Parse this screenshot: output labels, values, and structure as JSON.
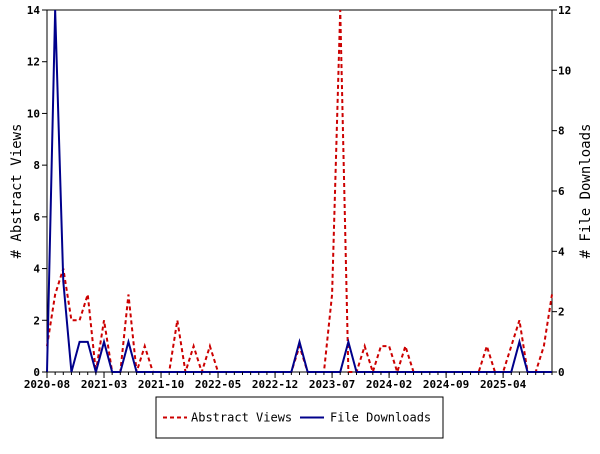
{
  "chart_data": {
    "type": "line",
    "title": "",
    "xlabel": "",
    "ylabel": "# Abstract Views",
    "y2label": "# File Downloads",
    "ylim": [
      0,
      14
    ],
    "y2lim": [
      0,
      12
    ],
    "yticks": [
      0,
      2,
      4,
      6,
      8,
      10,
      12,
      14
    ],
    "y2ticks": [
      0,
      2,
      4,
      6,
      8,
      10,
      12
    ],
    "grid": false,
    "legend": "bottom",
    "x_tick_labels": [
      "2020-08",
      "2021-03",
      "2021-10",
      "2022-05",
      "2022-12",
      "2023-07",
      "2024-02",
      "2024-09",
      "2025-04"
    ],
    "x": [
      "2020-08",
      "2020-09",
      "2020-10",
      "2020-11",
      "2020-12",
      "2021-01",
      "2021-02",
      "2021-03",
      "2021-04",
      "2021-05",
      "2021-06",
      "2021-07",
      "2021-08",
      "2021-09",
      "2021-10",
      "2021-11",
      "2021-12",
      "2022-01",
      "2022-02",
      "2022-03",
      "2022-04",
      "2022-05",
      "2022-06",
      "2022-07",
      "2022-08",
      "2022-09",
      "2022-10",
      "2022-11",
      "2022-12",
      "2023-01",
      "2023-02",
      "2023-03",
      "2023-04",
      "2023-05",
      "2023-06",
      "2023-07",
      "2023-08",
      "2023-09",
      "2023-10",
      "2023-11",
      "2023-12",
      "2024-01",
      "2024-02",
      "2024-03",
      "2024-04",
      "2024-05",
      "2024-06",
      "2024-07",
      "2024-08",
      "2024-09",
      "2024-10",
      "2024-11",
      "2024-12",
      "2025-01",
      "2025-02",
      "2025-03",
      "2025-04",
      "2025-05",
      "2025-06",
      "2025-07",
      "2025-08",
      "2025-09",
      "2025-10"
    ],
    "series": [
      {
        "name": "Abstract Views",
        "axis": "left",
        "color": "#cc0000",
        "style": "dashed",
        "values": [
          1,
          3,
          4,
          2,
          2,
          3,
          0,
          2,
          0,
          0,
          3,
          0,
          1,
          0,
          0,
          0,
          2,
          0,
          1,
          0,
          1,
          0,
          0,
          0,
          0,
          0,
          0,
          0,
          0,
          0,
          0,
          1,
          0,
          0,
          0,
          3,
          14,
          0,
          0,
          1,
          0,
          1,
          1,
          0,
          1,
          0,
          0,
          0,
          0,
          0,
          0,
          0,
          0,
          0,
          1,
          0,
          0,
          1,
          2,
          0,
          0,
          1,
          3
        ]
      },
      {
        "name": "File Downloads",
        "axis": "right",
        "color": "#00008b",
        "style": "solid",
        "values": [
          0,
          12,
          3,
          0,
          1,
          1,
          0,
          1,
          0,
          0,
          1,
          0,
          0,
          0,
          0,
          0,
          0,
          0,
          0,
          0,
          0,
          0,
          0,
          0,
          0,
          0,
          0,
          0,
          0,
          0,
          0,
          1,
          0,
          0,
          0,
          0,
          0,
          1,
          0,
          0,
          0,
          0,
          0,
          0,
          0,
          0,
          0,
          0,
          0,
          0,
          0,
          0,
          0,
          0,
          0,
          0,
          0,
          0,
          1,
          0,
          0,
          0,
          0
        ]
      }
    ]
  }
}
